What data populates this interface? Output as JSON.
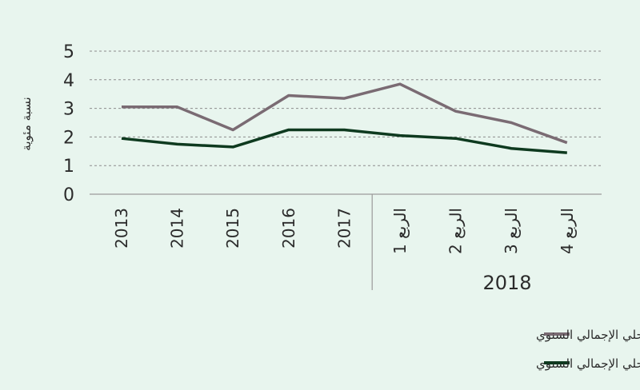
{
  "chart_data": {
    "type": "line",
    "ylabel": "نسبة مئوية",
    "ylim": [
      0,
      5
    ],
    "yticks": [
      "0",
      "1",
      "2",
      "3",
      "4",
      "5"
    ],
    "grid": true,
    "categories": [
      "2013",
      "2014",
      "2015",
      "2016",
      "2017",
      "الربع 1",
      "الربع 2",
      "الربع 3",
      "الربع 4"
    ],
    "group_label": "2018",
    "series": [
      {
        "name": "مجموعة العشرين - ناشئة - الناتج المحلي الإجمالي السنوي",
        "color": "#7a6b73",
        "values": [
          3.05,
          3.05,
          2.25,
          3.45,
          3.35,
          3.85,
          2.9,
          2.5,
          1.8
        ]
      },
      {
        "name": "مجموعة العشرين - متقدمة - الناتج المحلي الإجمالي السنوي",
        "color": "#0e3a1f",
        "values": [
          1.95,
          1.75,
          1.65,
          2.25,
          2.25,
          2.05,
          1.95,
          1.6,
          1.45
        ]
      }
    ],
    "legend_position": "bottom-right"
  }
}
